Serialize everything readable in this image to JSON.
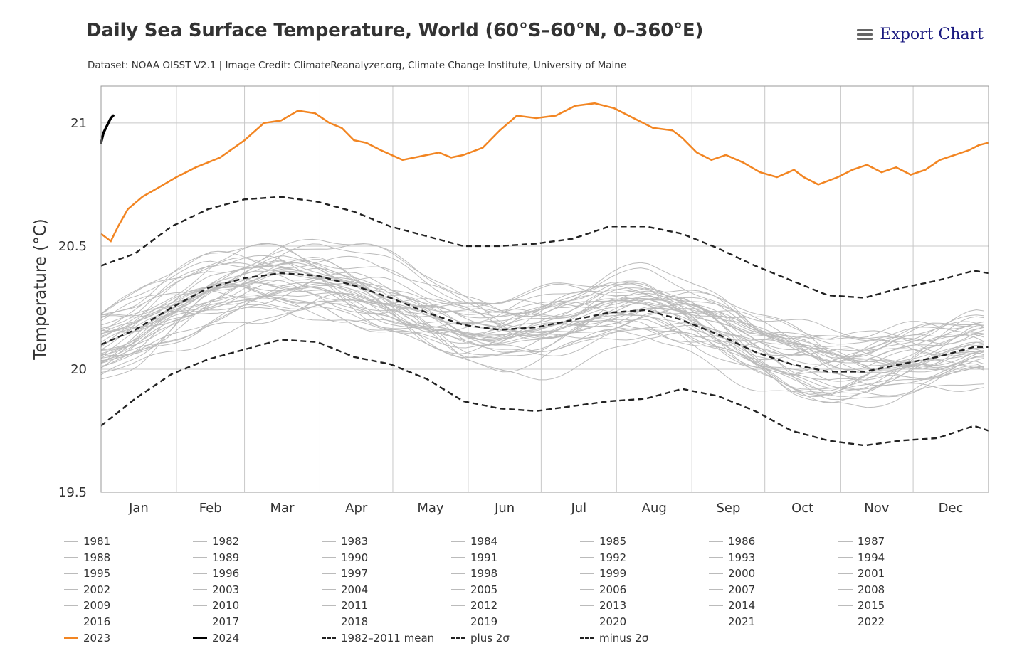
{
  "title": "Daily Sea Surface Temperature, World (60°S–60°N, 0–360°E)",
  "subtitle": "Dataset: NOAA OISST V2.1 | Image Credit: ClimateReanalyzer.org, Climate Change Institute, University of Maine",
  "export_label": "Export Chart",
  "icons": {
    "menu": "hamburger-menu-icon"
  },
  "colors": {
    "year_2023": "#f28522",
    "year_2024": "#000000",
    "past_years": "#bbbbbb",
    "stats": "#222222"
  },
  "chart_data": {
    "type": "line",
    "ylabel": "Temperature (°C)",
    "ylim": [
      19.5,
      21.15
    ],
    "yticks": [
      "19.5",
      "20",
      "20.5",
      "21"
    ],
    "ytick_values": [
      19.5,
      20,
      20.5,
      21
    ],
    "xlim": [
      1,
      366
    ],
    "months": [
      "Jan",
      "Feb",
      "Mar",
      "Apr",
      "May",
      "Jun",
      "Jul",
      "Aug",
      "Sep",
      "Oct",
      "Nov",
      "Dec"
    ],
    "grid": true,
    "legend_position": "bottom",
    "series": [
      {
        "name": "2023",
        "style": "orange-solid",
        "x": [
          1,
          5,
          8,
          12,
          18,
          25,
          32,
          40,
          50,
          60,
          68,
          75,
          82,
          89,
          95,
          100,
          105,
          110,
          116,
          125,
          135,
          140,
          145,
          150,
          158,
          165,
          172,
          180,
          188,
          196,
          204,
          212,
          220,
          228,
          236,
          240,
          246,
          252,
          258,
          265,
          272,
          279,
          286,
          290,
          296,
          304,
          310,
          316,
          322,
          328,
          334,
          340,
          346,
          352,
          358,
          362,
          366
        ],
        "y": [
          20.55,
          20.52,
          20.58,
          20.65,
          20.7,
          20.74,
          20.78,
          20.82,
          20.86,
          20.93,
          21.0,
          21.01,
          21.05,
          21.04,
          21.0,
          20.98,
          20.93,
          20.92,
          20.89,
          20.85,
          20.87,
          20.88,
          20.86,
          20.87,
          20.9,
          20.97,
          21.03,
          21.02,
          21.03,
          21.07,
          21.08,
          21.06,
          21.02,
          20.98,
          20.97,
          20.94,
          20.88,
          20.85,
          20.87,
          20.84,
          20.8,
          20.78,
          20.81,
          20.78,
          20.75,
          20.78,
          20.81,
          20.83,
          20.8,
          20.82,
          20.79,
          20.81,
          20.85,
          20.87,
          20.89,
          20.91,
          20.92
        ]
      },
      {
        "name": "2024",
        "style": "black-solid",
        "x": [
          1,
          2,
          3,
          4,
          5,
          6
        ],
        "y": [
          20.92,
          20.96,
          20.98,
          21.0,
          21.02,
          21.03
        ]
      },
      {
        "name": "1982-2011 mean",
        "style": "black-dash",
        "x": [
          1,
          15,
          30,
          45,
          60,
          75,
          90,
          105,
          120,
          135,
          150,
          165,
          180,
          195,
          210,
          225,
          240,
          255,
          270,
          285,
          300,
          315,
          330,
          345,
          360,
          366
        ],
        "y": [
          20.1,
          20.16,
          20.25,
          20.33,
          20.37,
          20.39,
          20.38,
          20.34,
          20.29,
          20.23,
          20.18,
          20.16,
          20.17,
          20.2,
          20.23,
          20.24,
          20.2,
          20.14,
          20.07,
          20.02,
          19.99,
          19.99,
          20.02,
          20.05,
          20.09,
          20.09
        ]
      },
      {
        "name": "plus 2σ",
        "style": "black-dash",
        "x": [
          1,
          15,
          30,
          45,
          60,
          75,
          90,
          105,
          120,
          135,
          150,
          165,
          180,
          195,
          210,
          225,
          240,
          255,
          270,
          285,
          300,
          315,
          330,
          345,
          360,
          366
        ],
        "y": [
          20.42,
          20.47,
          20.58,
          20.65,
          20.69,
          20.7,
          20.68,
          20.64,
          20.58,
          20.54,
          20.5,
          20.5,
          20.51,
          20.53,
          20.58,
          20.58,
          20.55,
          20.49,
          20.42,
          20.36,
          20.3,
          20.29,
          20.33,
          20.36,
          20.4,
          20.39
        ]
      },
      {
        "name": "minus 2σ",
        "style": "black-dash",
        "x": [
          1,
          15,
          30,
          45,
          60,
          75,
          90,
          105,
          120,
          135,
          150,
          165,
          180,
          195,
          210,
          225,
          240,
          255,
          270,
          285,
          300,
          315,
          330,
          345,
          360,
          366
        ],
        "y": [
          19.77,
          19.88,
          19.98,
          20.04,
          20.08,
          20.12,
          20.11,
          20.05,
          20.02,
          19.96,
          19.87,
          19.84,
          19.83,
          19.85,
          19.87,
          19.88,
          19.92,
          19.89,
          19.83,
          19.75,
          19.71,
          19.69,
          19.71,
          19.72,
          19.77,
          19.75
        ]
      }
    ],
    "past_years": [
      "1981",
      "1982",
      "1983",
      "1984",
      "1985",
      "1986",
      "1987",
      "1988",
      "1989",
      "1990",
      "1991",
      "1992",
      "1993",
      "1994",
      "1995",
      "1996",
      "1997",
      "1998",
      "1999",
      "2000",
      "2001",
      "2002",
      "2003",
      "2004",
      "2005",
      "2006",
      "2007",
      "2008",
      "2009",
      "2010",
      "2011",
      "2012",
      "2013",
      "2014",
      "2015",
      "2016",
      "2017",
      "2018",
      "2019",
      "2020",
      "2021",
      "2022"
    ],
    "legend_entries": [
      "1981",
      "1982",
      "1983",
      "1984",
      "1985",
      "1986",
      "1987",
      "1988",
      "1989",
      "1990",
      "1991",
      "1992",
      "1993",
      "1994",
      "1995",
      "1996",
      "1997",
      "1998",
      "1999",
      "2000",
      "2001",
      "2002",
      "2003",
      "2004",
      "2005",
      "2006",
      "2007",
      "2008",
      "2009",
      "2010",
      "2011",
      "2012",
      "2013",
      "2014",
      "2015",
      "2016",
      "2017",
      "2018",
      "2019",
      "2020",
      "2021",
      "2022",
      "2023",
      "2024",
      "1982–2011 mean",
      "plus 2σ",
      "minus 2σ"
    ]
  }
}
